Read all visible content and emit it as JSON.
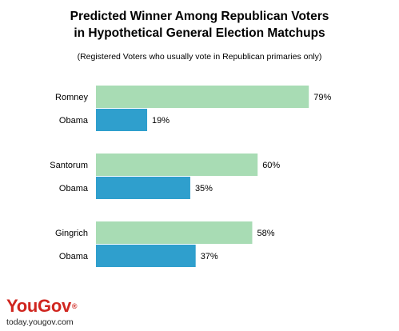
{
  "colors": {
    "candidate_bar": "#a8dcb4",
    "obama_bar": "#2f9fcd",
    "logo": "#d0261f"
  },
  "title_line1": "Predicted Winner Among Republican Voters",
  "title_line2": "in Hypothetical General Election Matchups",
  "subtitle": "(Registered Voters who usually vote in Republican primaries only)",
  "chart_data": {
    "type": "bar",
    "orientation": "horizontal",
    "xlim": [
      0,
      100
    ],
    "groups": [
      {
        "bars": [
          {
            "label": "Romney",
            "value": 79,
            "value_label": "79%"
          },
          {
            "label": "Obama",
            "value": 19,
            "value_label": "19%"
          }
        ]
      },
      {
        "bars": [
          {
            "label": "Santorum",
            "value": 60,
            "value_label": "60%"
          },
          {
            "label": "Obama",
            "value": 35,
            "value_label": "35%"
          }
        ]
      },
      {
        "bars": [
          {
            "label": "Gingrich",
            "value": 58,
            "value_label": "58%"
          },
          {
            "label": "Obama",
            "value": 37,
            "value_label": "37%"
          }
        ]
      }
    ],
    "grid": false
  },
  "logo_text": "YouGov",
  "logo_mark": "®",
  "url": "today.yougov.com"
}
